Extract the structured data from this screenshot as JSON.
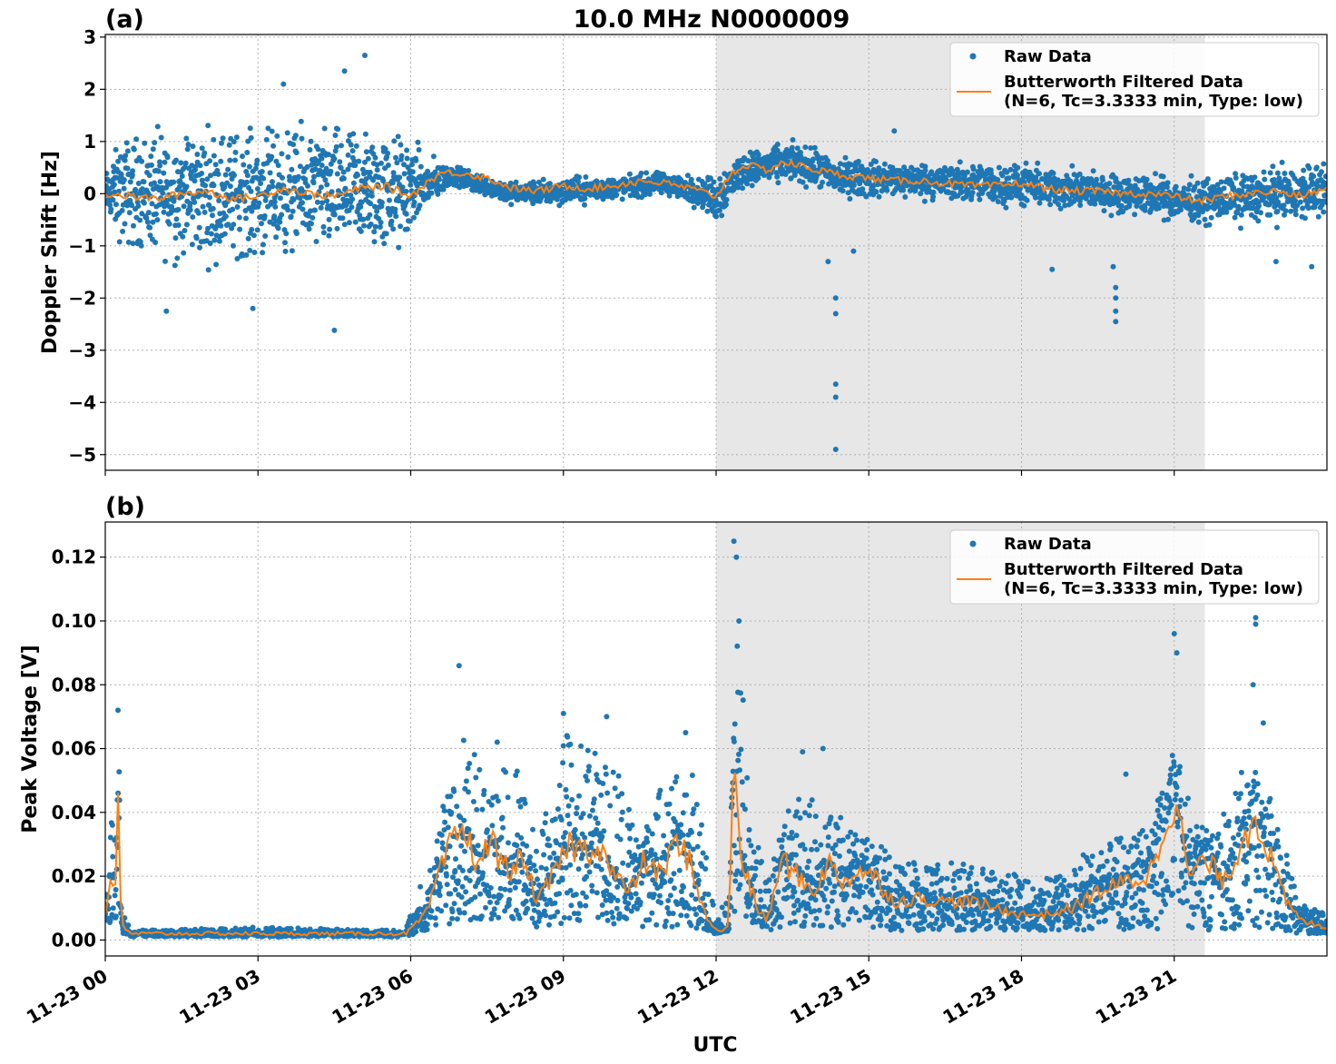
{
  "figure": {
    "title": "10.0 MHz N0000009",
    "xlabel": "UTC",
    "colors": {
      "raw": "#1f77b4",
      "filtered": "#ff7f0e",
      "shade": "#e7e7e7",
      "grid": "#b0b0b0"
    }
  },
  "legend": {
    "raw_label": "Raw Data",
    "filtered_label_line1": "Butterworth Filtered Data",
    "filtered_label_line2": "(N=6, Tc=3.3333 min, Type: low)"
  },
  "chart_data": [
    {
      "type": "scatter",
      "panel_label": "(a)",
      "title": "10.0 MHz N0000009",
      "xlabel": "",
      "ylabel": "Doppler Shift [Hz]",
      "xlim_hours": [
        0,
        24
      ],
      "ylim": [
        -5.3,
        3.05
      ],
      "yticks": [
        3,
        2,
        1,
        0,
        -1,
        -2,
        -3,
        -4,
        -5
      ],
      "ytick_labels": [
        "3",
        "2",
        "1",
        "0",
        "−1",
        "−2",
        "−3",
        "−4",
        "−5"
      ],
      "shaded_region_hours": [
        12.0,
        21.6
      ],
      "grid": true,
      "legend_position": "top-right",
      "series": [
        {
          "name": "Raw Data",
          "kind": "scatter",
          "color": "#1f77b4",
          "envelope": [
            {
              "x": 0.0,
              "min": -0.5,
              "max": 0.5
            },
            {
              "x": 0.3,
              "min": -1.3,
              "max": 1.4
            },
            {
              "x": 1.0,
              "min": -1.6,
              "max": 1.6
            },
            {
              "x": 2.0,
              "min": -1.7,
              "max": 1.7
            },
            {
              "x": 3.0,
              "min": -1.6,
              "max": 1.6
            },
            {
              "x": 4.0,
              "min": -1.5,
              "max": 1.6
            },
            {
              "x": 5.0,
              "min": -1.6,
              "max": 1.7
            },
            {
              "x": 5.9,
              "min": -1.5,
              "max": 1.5
            },
            {
              "x": 6.0,
              "min": -1.0,
              "max": 1.3
            },
            {
              "x": 6.3,
              "min": -0.6,
              "max": 0.9
            },
            {
              "x": 6.8,
              "min": 0.1,
              "max": 0.6
            },
            {
              "x": 8.0,
              "min": -0.3,
              "max": 0.3
            },
            {
              "x": 9.0,
              "min": -0.3,
              "max": 0.4
            },
            {
              "x": 10.0,
              "min": -0.2,
              "max": 0.4
            },
            {
              "x": 11.0,
              "min": -0.1,
              "max": 0.5
            },
            {
              "x": 11.8,
              "min": -0.4,
              "max": 0.4
            },
            {
              "x": 12.0,
              "min": -0.8,
              "max": 0.6
            },
            {
              "x": 12.5,
              "min": 0.0,
              "max": 0.9
            },
            {
              "x": 13.5,
              "min": 0.1,
              "max": 1.1
            },
            {
              "x": 14.5,
              "min": -0.2,
              "max": 0.8
            },
            {
              "x": 16.0,
              "min": -0.2,
              "max": 0.7
            },
            {
              "x": 18.0,
              "min": -0.4,
              "max": 0.7
            },
            {
              "x": 20.0,
              "min": -0.5,
              "max": 0.5
            },
            {
              "x": 21.5,
              "min": -0.7,
              "max": 0.4
            },
            {
              "x": 22.5,
              "min": -0.7,
              "max": 0.6
            },
            {
              "x": 24.0,
              "min": -0.7,
              "max": 0.8
            }
          ],
          "outliers": [
            {
              "x": 1.2,
              "y": -2.25
            },
            {
              "x": 2.9,
              "y": -2.2
            },
            {
              "x": 4.5,
              "y": -2.62
            },
            {
              "x": 5.1,
              "y": 2.65
            },
            {
              "x": 4.7,
              "y": 2.35
            },
            {
              "x": 3.5,
              "y": 2.1
            },
            {
              "x": 14.35,
              "y": -2.0
            },
            {
              "x": 14.35,
              "y": -2.3
            },
            {
              "x": 14.35,
              "y": -3.65
            },
            {
              "x": 14.35,
              "y": -3.9
            },
            {
              "x": 14.35,
              "y": -4.9
            },
            {
              "x": 14.2,
              "y": -1.3
            },
            {
              "x": 14.7,
              "y": -1.1
            },
            {
              "x": 18.6,
              "y": -1.45
            },
            {
              "x": 19.8,
              "y": -1.4
            },
            {
              "x": 19.85,
              "y": -1.8
            },
            {
              "x": 19.85,
              "y": -2.0
            },
            {
              "x": 19.85,
              "y": -2.25
            },
            {
              "x": 19.85,
              "y": -2.45
            },
            {
              "x": 23.0,
              "y": -1.3
            },
            {
              "x": 23.7,
              "y": -1.4
            },
            {
              "x": 15.5,
              "y": 1.2
            }
          ]
        },
        {
          "name": "Butterworth Filtered Data\n(N=6, Tc=3.3333 min, Type: low)",
          "kind": "line",
          "color": "#ff7f0e",
          "x": [
            0,
            0.5,
            1,
            1.5,
            2,
            2.5,
            3,
            3.5,
            4,
            4.5,
            5,
            5.5,
            6,
            6.3,
            6.6,
            7,
            7.5,
            8,
            8.5,
            9,
            9.5,
            10,
            10.5,
            11,
            11.5,
            12,
            12.3,
            12.6,
            13,
            13.3,
            13.6,
            14,
            14.5,
            15,
            15.5,
            16,
            16.5,
            17,
            17.5,
            18,
            18.5,
            19,
            19.5,
            20,
            20.5,
            21,
            21.5,
            22,
            22.5,
            23,
            23.5,
            24
          ],
          "y": [
            0.0,
            -0.05,
            -0.1,
            0.0,
            0.05,
            -0.1,
            -0.05,
            0.1,
            0.0,
            -0.05,
            0.1,
            0.15,
            -0.05,
            0.2,
            0.4,
            0.4,
            0.3,
            0.1,
            0.05,
            0.15,
            0.1,
            0.15,
            0.25,
            0.2,
            0.1,
            -0.05,
            0.4,
            0.55,
            0.45,
            0.6,
            0.55,
            0.45,
            0.35,
            0.3,
            0.25,
            0.25,
            0.2,
            0.15,
            0.15,
            0.2,
            0.1,
            0.05,
            0.05,
            0.0,
            0.0,
            -0.05,
            -0.15,
            -0.05,
            0.0,
            0.05,
            -0.05,
            0.1
          ]
        }
      ]
    },
    {
      "type": "scatter",
      "panel_label": "(b)",
      "title": "",
      "xlabel": "UTC",
      "ylabel": "Peak Voltage [V]",
      "xlim_hours": [
        0,
        24
      ],
      "ylim": [
        -0.005,
        0.131
      ],
      "yticks": [
        0.0,
        0.02,
        0.04,
        0.06,
        0.08,
        0.1,
        0.12
      ],
      "ytick_labels": [
        "0.00",
        "0.02",
        "0.04",
        "0.06",
        "0.08",
        "0.10",
        "0.12"
      ],
      "xticks_hours": [
        0,
        3,
        6,
        9,
        12,
        15,
        18,
        21
      ],
      "xtick_labels": [
        "11-23 00",
        "11-23 03",
        "11-23 06",
        "11-23 09",
        "11-23 12",
        "11-23 15",
        "11-23 18",
        "11-23 21"
      ],
      "shaded_region_hours": [
        12.0,
        21.6
      ],
      "grid": true,
      "legend_position": "top-right",
      "series": [
        {
          "name": "Raw Data",
          "kind": "scatter",
          "color": "#1f77b4",
          "envelope": [
            {
              "x": 0.0,
              "min": 0.005,
              "max": 0.03
            },
            {
              "x": 0.2,
              "min": 0.006,
              "max": 0.045
            },
            {
              "x": 0.25,
              "min": 0.01,
              "max": 0.07
            },
            {
              "x": 0.35,
              "min": 0.002,
              "max": 0.01
            },
            {
              "x": 0.5,
              "min": 0.001,
              "max": 0.003
            },
            {
              "x": 3.0,
              "min": 0.001,
              "max": 0.004
            },
            {
              "x": 5.9,
              "min": 0.001,
              "max": 0.003
            },
            {
              "x": 6.1,
              "min": 0.002,
              "max": 0.014
            },
            {
              "x": 6.5,
              "min": 0.003,
              "max": 0.03
            },
            {
              "x": 7.0,
              "min": 0.005,
              "max": 0.075
            },
            {
              "x": 7.5,
              "min": 0.006,
              "max": 0.045
            },
            {
              "x": 8.0,
              "min": 0.006,
              "max": 0.06
            },
            {
              "x": 8.5,
              "min": 0.004,
              "max": 0.03
            },
            {
              "x": 9.0,
              "min": 0.005,
              "max": 0.065
            },
            {
              "x": 9.5,
              "min": 0.006,
              "max": 0.06
            },
            {
              "x": 10.0,
              "min": 0.005,
              "max": 0.055
            },
            {
              "x": 10.5,
              "min": 0.004,
              "max": 0.035
            },
            {
              "x": 11.0,
              "min": 0.004,
              "max": 0.05
            },
            {
              "x": 11.5,
              "min": 0.004,
              "max": 0.055
            },
            {
              "x": 11.8,
              "min": 0.002,
              "max": 0.03
            },
            {
              "x": 12.0,
              "min": 0.002,
              "max": 0.006
            },
            {
              "x": 12.3,
              "min": 0.003,
              "max": 0.02
            },
            {
              "x": 12.4,
              "min": 0.008,
              "max": 0.1
            },
            {
              "x": 12.7,
              "min": 0.005,
              "max": 0.045
            },
            {
              "x": 13.0,
              "min": 0.003,
              "max": 0.02
            },
            {
              "x": 13.5,
              "min": 0.004,
              "max": 0.045
            },
            {
              "x": 14.0,
              "min": 0.004,
              "max": 0.045
            },
            {
              "x": 14.5,
              "min": 0.004,
              "max": 0.04
            },
            {
              "x": 15.0,
              "min": 0.004,
              "max": 0.035
            },
            {
              "x": 15.5,
              "min": 0.003,
              "max": 0.025
            },
            {
              "x": 16.5,
              "min": 0.003,
              "max": 0.025
            },
            {
              "x": 17.5,
              "min": 0.003,
              "max": 0.022
            },
            {
              "x": 18.5,
              "min": 0.003,
              "max": 0.02
            },
            {
              "x": 19.5,
              "min": 0.003,
              "max": 0.03
            },
            {
              "x": 20.5,
              "min": 0.003,
              "max": 0.035
            },
            {
              "x": 21.0,
              "min": 0.004,
              "max": 0.06
            },
            {
              "x": 21.5,
              "min": 0.003,
              "max": 0.035
            },
            {
              "x": 22.0,
              "min": 0.003,
              "max": 0.04
            },
            {
              "x": 22.5,
              "min": 0.004,
              "max": 0.06
            },
            {
              "x": 23.0,
              "min": 0.003,
              "max": 0.04
            },
            {
              "x": 23.5,
              "min": 0.002,
              "max": 0.012
            },
            {
              "x": 24.0,
              "min": 0.002,
              "max": 0.008
            }
          ],
          "outliers": [
            {
              "x": 0.25,
              "y": 0.072
            },
            {
              "x": 6.95,
              "y": 0.086
            },
            {
              "x": 7.7,
              "y": 0.062
            },
            {
              "x": 9.0,
              "y": 0.071
            },
            {
              "x": 9.85,
              "y": 0.07
            },
            {
              "x": 11.4,
              "y": 0.065
            },
            {
              "x": 12.35,
              "y": 0.125
            },
            {
              "x": 12.4,
              "y": 0.12
            },
            {
              "x": 12.45,
              "y": 0.1
            },
            {
              "x": 13.7,
              "y": 0.059
            },
            {
              "x": 14.1,
              "y": 0.06
            },
            {
              "x": 20.05,
              "y": 0.052
            },
            {
              "x": 21.0,
              "y": 0.096
            },
            {
              "x": 21.05,
              "y": 0.09
            },
            {
              "x": 22.6,
              "y": 0.101
            },
            {
              "x": 22.6,
              "y": 0.099
            },
            {
              "x": 22.55,
              "y": 0.08
            },
            {
              "x": 22.75,
              "y": 0.068
            }
          ]
        },
        {
          "name": "Butterworth Filtered Data\n(N=6, Tc=3.3333 min, Type: low)",
          "kind": "line",
          "color": "#ff7f0e",
          "x": [
            0,
            0.1,
            0.2,
            0.25,
            0.3,
            0.35,
            0.5,
            2,
            4,
            5.9,
            6.1,
            6.3,
            6.5,
            6.8,
            7.0,
            7.3,
            7.6,
            7.9,
            8.2,
            8.5,
            8.8,
            9.1,
            9.4,
            9.7,
            10.0,
            10.3,
            10.6,
            10.9,
            11.2,
            11.5,
            11.7,
            11.9,
            12.1,
            12.25,
            12.35,
            12.45,
            12.6,
            12.8,
            13.0,
            13.3,
            13.6,
            13.9,
            14.2,
            14.5,
            14.8,
            15.1,
            15.5,
            16.0,
            16.5,
            17.0,
            17.5,
            18.0,
            18.5,
            19.0,
            19.5,
            20.0,
            20.5,
            21.0,
            21.3,
            21.6,
            22.0,
            22.3,
            22.6,
            22.9,
            23.2,
            23.5,
            24.0
          ],
          "y": [
            0.008,
            0.02,
            0.018,
            0.04,
            0.012,
            0.004,
            0.002,
            0.002,
            0.002,
            0.002,
            0.005,
            0.008,
            0.018,
            0.03,
            0.035,
            0.025,
            0.03,
            0.022,
            0.025,
            0.012,
            0.02,
            0.03,
            0.028,
            0.03,
            0.02,
            0.015,
            0.025,
            0.02,
            0.03,
            0.025,
            0.012,
            0.004,
            0.003,
            0.004,
            0.063,
            0.03,
            0.02,
            0.01,
            0.006,
            0.025,
            0.02,
            0.015,
            0.024,
            0.018,
            0.022,
            0.02,
            0.012,
            0.013,
            0.012,
            0.012,
            0.01,
            0.008,
            0.008,
            0.01,
            0.015,
            0.018,
            0.02,
            0.045,
            0.02,
            0.025,
            0.018,
            0.03,
            0.04,
            0.025,
            0.012,
            0.006,
            0.004
          ]
        }
      ]
    }
  ]
}
